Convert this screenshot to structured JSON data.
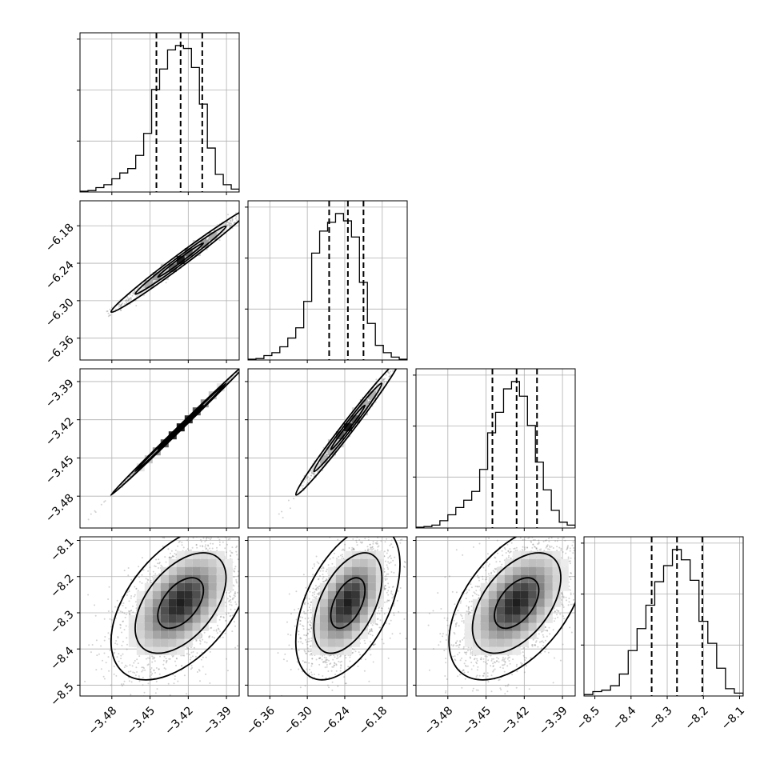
{
  "chart_data": {
    "type": "corner",
    "parameters": [
      {
        "index": 0,
        "range": [
          -3.505,
          -3.38
        ],
        "ticks": [
          -3.48,
          -3.45,
          -3.42,
          -3.39
        ],
        "tick_labels": [
          "−3.48",
          "−3.45",
          "−3.42",
          "−3.39"
        ],
        "quantiles": [
          -3.445,
          -3.426,
          -3.409
        ]
      },
      {
        "index": 1,
        "range": [
          -6.395,
          -6.14
        ],
        "ticks": [
          -6.36,
          -6.3,
          -6.24,
          -6.18
        ],
        "tick_labels": [
          "−6.36",
          "−6.30",
          "−6.24",
          "−6.18"
        ],
        "quantiles": [
          -6.265,
          -6.235,
          -6.21
        ]
      },
      {
        "index": 2,
        "range": [
          -3.505,
          -3.38
        ],
        "ticks": [
          -3.48,
          -3.45,
          -3.42,
          -3.39
        ],
        "tick_labels": [
          "−3.48",
          "−3.45",
          "−3.42",
          "−3.39"
        ],
        "quantiles": [
          -3.445,
          -3.426,
          -3.41
        ]
      },
      {
        "index": 3,
        "range": [
          -8.53,
          -8.09
        ],
        "ticks": [
          -8.5,
          -8.4,
          -8.3,
          -8.2,
          -8.1
        ],
        "tick_labels": [
          "−8.5",
          "−8.4",
          "−8.3",
          "−8.2",
          "−8.1"
        ],
        "quantiles": [
          -8.343,
          -8.273,
          -8.203
        ]
      }
    ],
    "histograms": [
      [
        0.005,
        0.01,
        0.03,
        0.05,
        0.09,
        0.13,
        0.16,
        0.25,
        0.4,
        0.7,
        0.84,
        0.97,
        1.0,
        0.98,
        0.85,
        0.6,
        0.3,
        0.12,
        0.05,
        0.02
      ],
      [
        0.005,
        0.01,
        0.03,
        0.05,
        0.09,
        0.15,
        0.22,
        0.4,
        0.73,
        0.88,
        0.94,
        1.0,
        0.95,
        0.84,
        0.53,
        0.25,
        0.1,
        0.05,
        0.02,
        0.005
      ],
      [
        0.005,
        0.01,
        0.02,
        0.05,
        0.09,
        0.14,
        0.19,
        0.25,
        0.4,
        0.65,
        0.79,
        0.95,
        1.0,
        0.9,
        0.7,
        0.45,
        0.26,
        0.12,
        0.04,
        0.02
      ],
      [
        0.01,
        0.03,
        0.04,
        0.07,
        0.15,
        0.31,
        0.46,
        0.62,
        0.78,
        0.89,
        1.0,
        0.93,
        0.79,
        0.51,
        0.36,
        0.19,
        0.05,
        0.02
      ]
    ],
    "correlation": [
      [
        1.0,
        0.99,
        0.999,
        0.5
      ],
      [
        0.99,
        1.0,
        0.99,
        0.5
      ],
      [
        0.999,
        0.99,
        1.0,
        0.5
      ],
      [
        0.5,
        0.5,
        0.5,
        1.0
      ]
    ],
    "contour_levels": [
      0.39,
      0.86,
      0.99
    ],
    "grid": true,
    "colors": {
      "hist": "#000000",
      "points": "#7f7f7f",
      "density": "#000000"
    }
  }
}
